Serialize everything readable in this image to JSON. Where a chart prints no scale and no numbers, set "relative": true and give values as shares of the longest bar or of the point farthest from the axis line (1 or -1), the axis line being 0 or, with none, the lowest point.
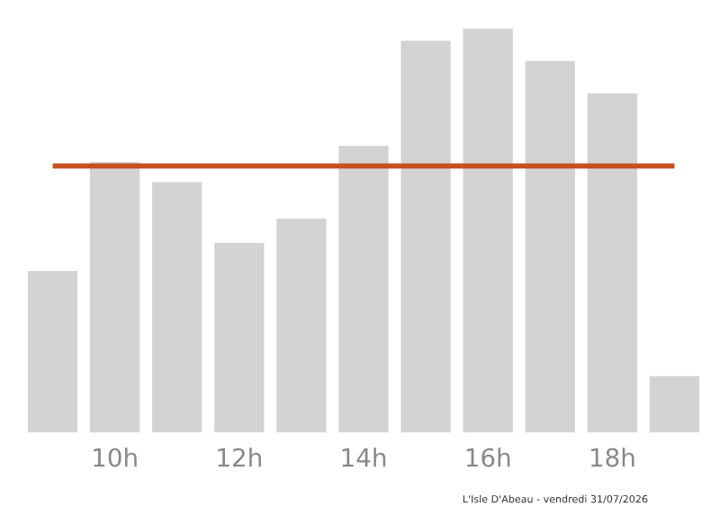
{
  "chart_data": {
    "type": "bar",
    "relative": true,
    "categories": [
      null,
      "10h",
      null,
      "12h",
      null,
      "14h",
      null,
      "16h",
      null,
      "18h",
      null
    ],
    "values": [
      0.4,
      0.67,
      0.62,
      0.47,
      0.53,
      0.71,
      0.97,
      1,
      0.92,
      0.84,
      0.14
    ],
    "color": "#d3d3d3",
    "ref_lines": [
      {
        "axis": "y",
        "value": 0.66,
        "color": "#c8501e",
        "line_style": "solid"
      }
    ],
    "annotations": [
      "L'Isle D'Abeau - vendredi 31/07/2026"
    ],
    "grid": false,
    "legend": false
  }
}
